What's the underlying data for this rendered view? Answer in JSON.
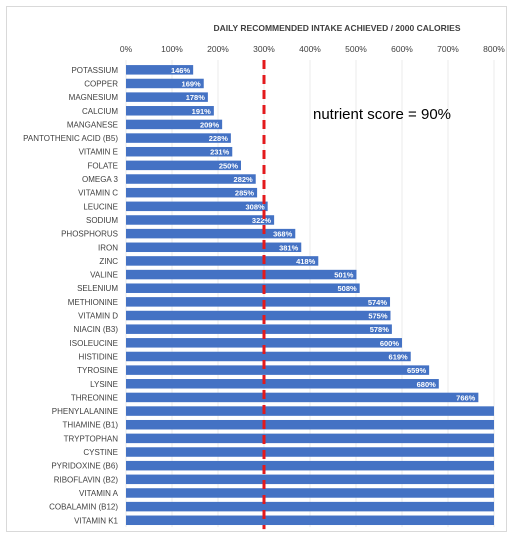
{
  "chart_data": {
    "type": "bar",
    "orientation": "horizontal",
    "title": "DAILY RECOMMENDED INTAKE ACHIEVED / 2000 CALORIES",
    "xlim": [
      0,
      800
    ],
    "x_ticks": [
      "0%",
      "100%",
      "200%",
      "300%",
      "400%",
      "500%",
      "600%",
      "700%",
      "800%"
    ],
    "bar_color": "#4472c4",
    "reference_line": {
      "value": 300,
      "color": "#e31a1c",
      "style": "dashed"
    },
    "annotation": "nutrient score = 90%",
    "categories": [
      "POTASSIUM",
      "COPPER",
      "MAGNESIUM",
      "CALCIUM",
      "MANGANESE",
      "PANTOTHENIC ACID (B5)",
      "VITAMIN E",
      "FOLATE",
      "OMEGA 3",
      "VITAMIN C",
      "LEUCINE",
      "SODIUM",
      "PHOSPHORUS",
      "IRON",
      "ZINC",
      "VALINE",
      "SELENIUM",
      "METHIONINE",
      "VITAMIN D",
      "NIACIN (B3)",
      "ISOLEUCINE",
      "HISTIDINE",
      "TYROSINE",
      "LYSINE",
      "THREONINE",
      "PHENYLALANINE",
      "THIAMINE (B1)",
      "TRYPTOPHAN",
      "CYSTINE",
      "PYRIDOXINE (B6)",
      "RIBOFLAVIN (B2)",
      "VITAMIN A",
      "COBALAMIN (B12)",
      "VITAMIN K1"
    ],
    "values": [
      146,
      169,
      178,
      191,
      209,
      228,
      231,
      250,
      282,
      285,
      308,
      322,
      368,
      381,
      418,
      501,
      508,
      574,
      575,
      578,
      600,
      619,
      659,
      680,
      766,
      800,
      800,
      800,
      800,
      800,
      800,
      800,
      800,
      800
    ],
    "labels": [
      "146%",
      "169%",
      "178%",
      "191%",
      "209%",
      "228%",
      "231%",
      "250%",
      "282%",
      "285%",
      "308%",
      "322%",
      "368%",
      "381%",
      "418%",
      "501%",
      "508%",
      "574%",
      "575%",
      "578%",
      "600%",
      "619%",
      "659%",
      "680%",
      "766%",
      "",
      "",
      "",
      "",
      "",
      "",
      "",
      "",
      ""
    ]
  }
}
